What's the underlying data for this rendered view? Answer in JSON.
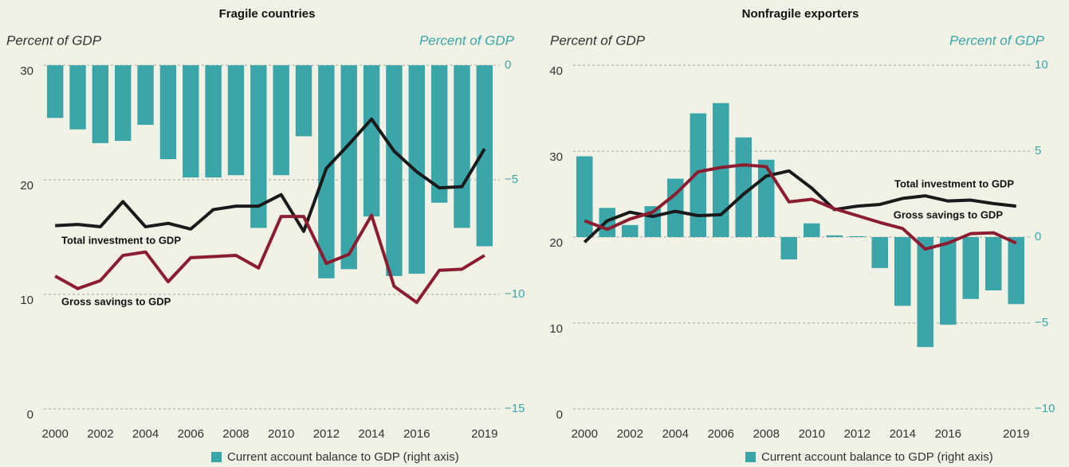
{
  "chart_data": [
    {
      "type": "bar_line",
      "title": "Fragile countries",
      "ylabel": "Percent of GDP",
      "y2label": "Percent of GDP",
      "categories": [
        "2000",
        null,
        "2002",
        null,
        "2004",
        null,
        "2006",
        null,
        "2008",
        null,
        "2010",
        null,
        "2012",
        null,
        "2014",
        null,
        "2016",
        null,
        null,
        "2019"
      ],
      "ylim": [
        0,
        30
      ],
      "yticks": [
        0,
        10,
        20,
        30
      ],
      "y2lim": [
        -15,
        0
      ],
      "y2ticks": [
        0,
        {
          "value": -5,
          "label": "−5"
        },
        {
          "value": -10,
          "label": "−10"
        },
        {
          "value": -15,
          "label": "−15"
        }
      ],
      "grid": true,
      "series": [
        {
          "name": "Current account balance to GDP (right axis)",
          "kind": "bar",
          "axis": "y2",
          "color": "#3aa6a9",
          "values": [
            -2.3,
            -2.8,
            -3.4,
            -3.3,
            -2.6,
            -4.1,
            -4.9,
            -4.9,
            -4.8,
            -7.1,
            -4.8,
            -3.1,
            -9.3,
            -8.9,
            -6.6,
            -9.2,
            -9.1,
            -6.0,
            -7.1,
            -7.9
          ]
        },
        {
          "name": "Total investment to GDP",
          "kind": "line",
          "color": "#1a1a1a",
          "values": [
            16.0,
            16.1,
            15.9,
            18.1,
            15.9,
            16.2,
            15.7,
            17.4,
            17.7,
            17.7,
            18.7,
            15.5,
            21.0,
            23.1,
            25.3,
            22.5,
            20.7,
            19.3,
            19.4,
            22.7
          ]
        },
        {
          "name": "Gross savings to GDP",
          "kind": "line",
          "color": "#8c1d30",
          "values": [
            11.6,
            10.5,
            11.2,
            13.4,
            13.7,
            11.1,
            13.2,
            13.3,
            13.4,
            12.3,
            16.8,
            16.8,
            12.7,
            13.5,
            16.9,
            10.7,
            9.3,
            12.1,
            12.2,
            13.4
          ]
        }
      ]
    },
    {
      "type": "bar_line",
      "title": "Nonfragile exporters",
      "ylabel": "Percent of GDP",
      "y2label": "Percent of GDP",
      "categories": [
        "2000",
        null,
        "2002",
        null,
        "2004",
        null,
        "2006",
        null,
        "2008",
        null,
        "2010",
        null,
        "2012",
        null,
        "2014",
        null,
        "2016",
        null,
        null,
        "2019"
      ],
      "ylim": [
        0,
        40
      ],
      "yticks": [
        0,
        10,
        20,
        30,
        40
      ],
      "y2lim": [
        -10,
        10
      ],
      "y2ticks": [
        10,
        5,
        0,
        {
          "value": -5,
          "label": "−5"
        },
        {
          "value": -10,
          "label": "−10"
        }
      ],
      "grid": true,
      "series": [
        {
          "name": "Current account balance to GDP (right axis)",
          "kind": "bar",
          "axis": "y2",
          "color": "#3aa6a9",
          "values": [
            4.7,
            1.7,
            0.7,
            1.8,
            3.4,
            7.2,
            7.8,
            5.8,
            4.5,
            -1.3,
            0.8,
            0.1,
            0.05,
            -1.8,
            -4.0,
            -6.4,
            -5.1,
            -3.6,
            -3.1,
            -3.9
          ]
        },
        {
          "name": "Total investment to GDP",
          "kind": "line",
          "color": "#1a1a1a",
          "values": [
            19.4,
            21.9,
            22.9,
            22.4,
            23.0,
            22.5,
            22.6,
            25.0,
            27.1,
            27.7,
            25.7,
            23.2,
            23.6,
            23.8,
            24.5,
            24.8,
            24.2,
            24.3,
            23.9,
            23.6
          ]
        },
        {
          "name": "Gross savings to GDP",
          "kind": "line",
          "color": "#8c1d30",
          "values": [
            21.9,
            20.9,
            22.1,
            22.9,
            25.0,
            27.6,
            28.1,
            28.4,
            28.2,
            24.1,
            24.4,
            23.3,
            22.5,
            21.7,
            21.0,
            18.6,
            19.3,
            20.4,
            20.5,
            19.3
          ]
        }
      ]
    }
  ]
}
